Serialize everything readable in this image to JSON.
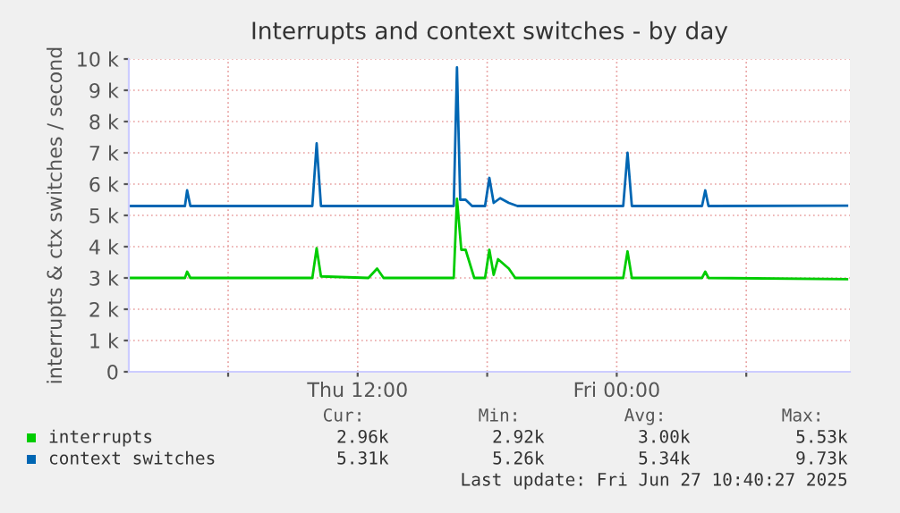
{
  "chart_data": {
    "type": "line",
    "title": "Interrupts and context switches - by day",
    "ylabel": "interrupts & ctx switches / second",
    "xlim": [
      "2025-06-26T01:24",
      "2025-06-27T10:48"
    ],
    "xticks": [
      {
        "value": "2025-06-26T06:00",
        "label": null
      },
      {
        "value": "2025-06-26T12:00",
        "label": "Thu 12:00"
      },
      {
        "value": "2025-06-26T18:00",
        "label": null
      },
      {
        "value": "2025-06-27T00:00",
        "label": "Fri 00:00"
      },
      {
        "value": "2025-06-27T06:00",
        "label": null
      }
    ],
    "ylim": [
      0,
      10000
    ],
    "yticks": [
      0,
      {
        "value": 1000,
        "label": "1 k"
      },
      {
        "value": 2000,
        "label": "2 k"
      },
      {
        "value": 3000,
        "label": "3 k"
      },
      {
        "value": 4000,
        "label": "4 k"
      },
      {
        "value": 5000,
        "label": "5 k"
      },
      {
        "value": 6000,
        "label": "6 k"
      },
      {
        "value": 7000,
        "label": "7 k"
      },
      {
        "value": 8000,
        "label": "8 k"
      },
      {
        "value": 9000,
        "label": "9 k"
      },
      {
        "value": 10000,
        "label": "10 k"
      }
    ],
    "grid": true,
    "legend": "bottom",
    "series": [
      {
        "name": "interrupts",
        "color": "#00cc00",
        "x": [
          "2025-06-26T01:24",
          "2025-06-26T04:00",
          "2025-06-26T04:06",
          "2025-06-26T04:15",
          "2025-06-26T09:54",
          "2025-06-26T10:06",
          "2025-06-26T10:18",
          "2025-06-26T12:30",
          "2025-06-26T12:54",
          "2025-06-26T13:12",
          "2025-06-26T16:27",
          "2025-06-26T16:36",
          "2025-06-26T16:48",
          "2025-06-26T17:00",
          "2025-06-26T17:24",
          "2025-06-26T17:36",
          "2025-06-26T17:54",
          "2025-06-26T18:06",
          "2025-06-26T18:18",
          "2025-06-26T18:30",
          "2025-06-26T19:00",
          "2025-06-26T19:18",
          "2025-06-27T00:18",
          "2025-06-27T00:30",
          "2025-06-27T00:42",
          "2025-06-27T03:57",
          "2025-06-27T04:06",
          "2025-06-27T04:15",
          "2025-06-27T10:40"
        ],
        "values": [
          3000,
          3000,
          3200,
          3000,
          3000,
          3950,
          3050,
          3000,
          3300,
          3000,
          3000,
          5530,
          3900,
          3900,
          3000,
          3000,
          3000,
          3900,
          3100,
          3600,
          3300,
          3000,
          3000,
          3850,
          3000,
          3000,
          3200,
          3000,
          2960
        ]
      },
      {
        "name": "context switches",
        "color": "#0066b3",
        "x": [
          "2025-06-26T01:24",
          "2025-06-26T04:00",
          "2025-06-26T04:06",
          "2025-06-26T04:15",
          "2025-06-26T09:54",
          "2025-06-26T10:06",
          "2025-06-26T10:18",
          "2025-06-26T16:27",
          "2025-06-26T16:36",
          "2025-06-26T16:45",
          "2025-06-26T17:00",
          "2025-06-26T17:18",
          "2025-06-26T17:36",
          "2025-06-26T17:54",
          "2025-06-26T18:06",
          "2025-06-26T18:18",
          "2025-06-26T18:36",
          "2025-06-26T19:00",
          "2025-06-26T19:24",
          "2025-06-27T00:18",
          "2025-06-27T00:30",
          "2025-06-27T00:42",
          "2025-06-27T03:57",
          "2025-06-27T04:06",
          "2025-06-27T04:15",
          "2025-06-27T10:40"
        ],
        "values": [
          5300,
          5300,
          5800,
          5300,
          5300,
          7300,
          5300,
          5300,
          9730,
          5500,
          5500,
          5300,
          5300,
          5300,
          6200,
          5400,
          5550,
          5400,
          5300,
          5300,
          7000,
          5300,
          5300,
          5800,
          5300,
          5310
        ]
      }
    ],
    "annotations": [
      "Cur:",
      "Min:",
      "Avg:",
      "Max:",
      "2.96k",
      "2.92k",
      "3.00k",
      "5.53k",
      "5.31k",
      "5.26k",
      "5.34k",
      "9.73k",
      "Last update: Fri Jun 27 10:40:27 2025"
    ]
  }
}
